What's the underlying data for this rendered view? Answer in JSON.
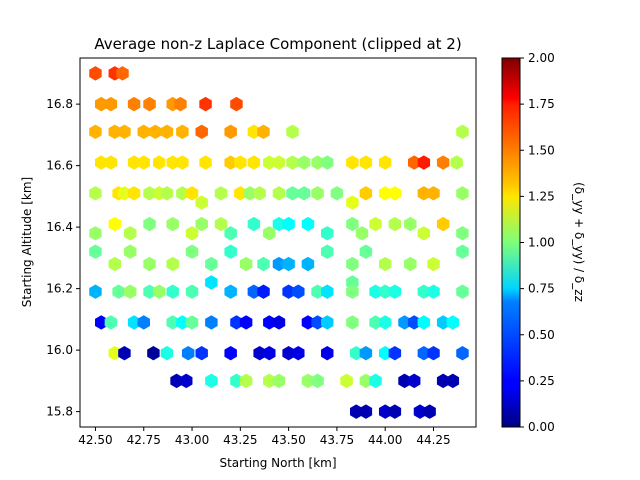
{
  "chart_data": {
    "type": "heatmap",
    "subtype": "hexbin",
    "title": "Average non-z Laplace Component (clipped at 2)",
    "xlabel": "Starting North [km]",
    "ylabel": "Starting Altitude [km]",
    "colorbar_label": "(δ_yy + δ_yy) / δ_zz",
    "colormap": "jet",
    "xlim": [
      42.42,
      44.47
    ],
    "ylim": [
      15.75,
      16.95
    ],
    "clim": [
      0,
      2
    ],
    "x_ticks": [
      {
        "value": 42.5,
        "label": "42.50"
      },
      {
        "value": 42.75,
        "label": "42.75"
      },
      {
        "value": 43.0,
        "label": "43.00"
      },
      {
        "value": 43.25,
        "label": "43.25"
      },
      {
        "value": 43.5,
        "label": "43.50"
      },
      {
        "value": 43.75,
        "label": "43.75"
      },
      {
        "value": 44.0,
        "label": "44.00"
      },
      {
        "value": 44.25,
        "label": "44.25"
      }
    ],
    "y_ticks": [
      {
        "value": 15.8,
        "label": "15.8"
      },
      {
        "value": 16.0,
        "label": "16.0"
      },
      {
        "value": 16.2,
        "label": "16.2"
      },
      {
        "value": 16.4,
        "label": "16.4"
      },
      {
        "value": 16.6,
        "label": "16.6"
      },
      {
        "value": 16.8,
        "label": "16.8"
      }
    ],
    "colorbar_ticks": [
      {
        "value": 0.0,
        "label": "0.00"
      },
      {
        "value": 0.25,
        "label": "0.25"
      },
      {
        "value": 0.5,
        "label": "0.50"
      },
      {
        "value": 0.75,
        "label": "0.75"
      },
      {
        "value": 1.0,
        "label": "1.00"
      },
      {
        "value": 1.25,
        "label": "1.25"
      },
      {
        "value": 1.5,
        "label": "1.50"
      },
      {
        "value": 1.75,
        "label": "1.75"
      },
      {
        "value": 2.0,
        "label": "2.00"
      }
    ],
    "points": [
      {
        "x": 42.5,
        "y": 16.9,
        "v": 1.6
      },
      {
        "x": 42.6,
        "y": 16.9,
        "v": 1.65
      },
      {
        "x": 42.64,
        "y": 16.9,
        "v": 1.55
      },
      {
        "x": 42.53,
        "y": 16.8,
        "v": 1.45
      },
      {
        "x": 42.58,
        "y": 16.8,
        "v": 1.45
      },
      {
        "x": 42.7,
        "y": 16.8,
        "v": 1.5
      },
      {
        "x": 42.78,
        "y": 16.8,
        "v": 1.5
      },
      {
        "x": 42.9,
        "y": 16.8,
        "v": 1.45
      },
      {
        "x": 42.94,
        "y": 16.8,
        "v": 1.5
      },
      {
        "x": 43.07,
        "y": 16.8,
        "v": 1.65
      },
      {
        "x": 43.23,
        "y": 16.8,
        "v": 1.6
      },
      {
        "x": 42.5,
        "y": 16.71,
        "v": 1.4
      },
      {
        "x": 42.6,
        "y": 16.71,
        "v": 1.4
      },
      {
        "x": 42.65,
        "y": 16.71,
        "v": 1.4
      },
      {
        "x": 42.75,
        "y": 16.71,
        "v": 1.4
      },
      {
        "x": 42.81,
        "y": 16.71,
        "v": 1.4
      },
      {
        "x": 42.87,
        "y": 16.71,
        "v": 1.4
      },
      {
        "x": 42.95,
        "y": 16.71,
        "v": 1.4
      },
      {
        "x": 43.05,
        "y": 16.71,
        "v": 1.55
      },
      {
        "x": 43.2,
        "y": 16.71,
        "v": 1.45
      },
      {
        "x": 43.32,
        "y": 16.71,
        "v": 1.3
      },
      {
        "x": 43.37,
        "y": 16.71,
        "v": 1.4
      },
      {
        "x": 43.52,
        "y": 16.71,
        "v": 1.1
      },
      {
        "x": 44.4,
        "y": 16.71,
        "v": 1.1
      },
      {
        "x": 42.53,
        "y": 16.61,
        "v": 1.3
      },
      {
        "x": 42.58,
        "y": 16.61,
        "v": 1.3
      },
      {
        "x": 42.7,
        "y": 16.61,
        "v": 1.3
      },
      {
        "x": 42.75,
        "y": 16.61,
        "v": 1.3
      },
      {
        "x": 42.83,
        "y": 16.61,
        "v": 1.3
      },
      {
        "x": 42.9,
        "y": 16.61,
        "v": 1.3
      },
      {
        "x": 42.95,
        "y": 16.61,
        "v": 1.3
      },
      {
        "x": 43.07,
        "y": 16.61,
        "v": 1.3
      },
      {
        "x": 43.2,
        "y": 16.61,
        "v": 1.35
      },
      {
        "x": 43.25,
        "y": 16.61,
        "v": 1.3
      },
      {
        "x": 43.32,
        "y": 16.61,
        "v": 1.3
      },
      {
        "x": 43.4,
        "y": 16.61,
        "v": 1.15
      },
      {
        "x": 43.45,
        "y": 16.61,
        "v": 1.15
      },
      {
        "x": 43.52,
        "y": 16.61,
        "v": 1.1
      },
      {
        "x": 43.58,
        "y": 16.61,
        "v": 1.05
      },
      {
        "x": 43.65,
        "y": 16.61,
        "v": 1.05
      },
      {
        "x": 43.7,
        "y": 16.61,
        "v": 1.0
      },
      {
        "x": 43.83,
        "y": 16.61,
        "v": 1.3
      },
      {
        "x": 43.9,
        "y": 16.61,
        "v": 1.3
      },
      {
        "x": 44.0,
        "y": 16.61,
        "v": 1.3
      },
      {
        "x": 44.15,
        "y": 16.61,
        "v": 1.55
      },
      {
        "x": 44.2,
        "y": 16.61,
        "v": 1.7
      },
      {
        "x": 44.3,
        "y": 16.61,
        "v": 1.5
      },
      {
        "x": 44.37,
        "y": 16.61,
        "v": 1.1
      },
      {
        "x": 42.5,
        "y": 16.51,
        "v": 1.1
      },
      {
        "x": 42.62,
        "y": 16.51,
        "v": 1.3
      },
      {
        "x": 42.65,
        "y": 16.51,
        "v": 1.2
      },
      {
        "x": 42.7,
        "y": 16.51,
        "v": 1.3
      },
      {
        "x": 42.78,
        "y": 16.51,
        "v": 1.1
      },
      {
        "x": 42.83,
        "y": 16.51,
        "v": 1.15
      },
      {
        "x": 42.87,
        "y": 16.51,
        "v": 1.1
      },
      {
        "x": 42.95,
        "y": 16.51,
        "v": 1.1
      },
      {
        "x": 43.0,
        "y": 16.51,
        "v": 1.3
      },
      {
        "x": 43.15,
        "y": 16.51,
        "v": 1.1
      },
      {
        "x": 43.25,
        "y": 16.51,
        "v": 1.3
      },
      {
        "x": 43.3,
        "y": 16.51,
        "v": 1.05
      },
      {
        "x": 43.35,
        "y": 16.51,
        "v": 1.1
      },
      {
        "x": 43.45,
        "y": 16.51,
        "v": 1.1
      },
      {
        "x": 43.52,
        "y": 16.51,
        "v": 0.95
      },
      {
        "x": 43.58,
        "y": 16.51,
        "v": 0.95
      },
      {
        "x": 43.65,
        "y": 16.51,
        "v": 1.05
      },
      {
        "x": 43.75,
        "y": 16.51,
        "v": 1.0
      },
      {
        "x": 43.9,
        "y": 16.51,
        "v": 1.35
      },
      {
        "x": 44.0,
        "y": 16.51,
        "v": 1.25
      },
      {
        "x": 44.05,
        "y": 16.51,
        "v": 1.25
      },
      {
        "x": 44.2,
        "y": 16.51,
        "v": 1.4
      },
      {
        "x": 44.25,
        "y": 16.51,
        "v": 1.4
      },
      {
        "x": 44.4,
        "y": 16.51,
        "v": 1.05
      },
      {
        "x": 43.83,
        "y": 16.48,
        "v": 1.2
      },
      {
        "x": 43.05,
        "y": 16.48,
        "v": 1.15
      },
      {
        "x": 42.5,
        "y": 16.38,
        "v": 1.05
      },
      {
        "x": 42.6,
        "y": 16.41,
        "v": 1.25
      },
      {
        "x": 42.68,
        "y": 16.38,
        "v": 1.1
      },
      {
        "x": 42.78,
        "y": 16.41,
        "v": 1.0
      },
      {
        "x": 42.9,
        "y": 16.41,
        "v": 1.05
      },
      {
        "x": 43.0,
        "y": 16.38,
        "v": 1.15
      },
      {
        "x": 43.05,
        "y": 16.41,
        "v": 1.05
      },
      {
        "x": 43.15,
        "y": 16.41,
        "v": 1.1
      },
      {
        "x": 43.2,
        "y": 16.38,
        "v": 0.9
      },
      {
        "x": 43.32,
        "y": 16.41,
        "v": 0.85
      },
      {
        "x": 43.4,
        "y": 16.38,
        "v": 1.05
      },
      {
        "x": 43.45,
        "y": 16.41,
        "v": 0.8
      },
      {
        "x": 43.5,
        "y": 16.41,
        "v": 0.75
      },
      {
        "x": 43.6,
        "y": 16.41,
        "v": 0.75
      },
      {
        "x": 43.7,
        "y": 16.38,
        "v": 0.85
      },
      {
        "x": 43.83,
        "y": 16.41,
        "v": 1.0
      },
      {
        "x": 43.88,
        "y": 16.38,
        "v": 1.05
      },
      {
        "x": 43.95,
        "y": 16.41,
        "v": 1.15
      },
      {
        "x": 44.05,
        "y": 16.41,
        "v": 1.1
      },
      {
        "x": 44.13,
        "y": 16.41,
        "v": 1.05
      },
      {
        "x": 44.2,
        "y": 16.38,
        "v": 1.15
      },
      {
        "x": 44.3,
        "y": 16.41,
        "v": 1.35
      },
      {
        "x": 44.4,
        "y": 16.38,
        "v": 1.0
      },
      {
        "x": 42.5,
        "y": 16.32,
        "v": 0.95
      },
      {
        "x": 42.6,
        "y": 16.28,
        "v": 1.1
      },
      {
        "x": 42.68,
        "y": 16.32,
        "v": 1.05
      },
      {
        "x": 42.78,
        "y": 16.28,
        "v": 1.05
      },
      {
        "x": 42.9,
        "y": 16.28,
        "v": 1.1
      },
      {
        "x": 43.0,
        "y": 16.32,
        "v": 1.0
      },
      {
        "x": 43.1,
        "y": 16.28,
        "v": 0.95
      },
      {
        "x": 43.2,
        "y": 16.32,
        "v": 0.85
      },
      {
        "x": 43.28,
        "y": 16.28,
        "v": 1.05
      },
      {
        "x": 43.37,
        "y": 16.28,
        "v": 0.9
      },
      {
        "x": 43.45,
        "y": 16.28,
        "v": 0.55
      },
      {
        "x": 43.5,
        "y": 16.28,
        "v": 0.6
      },
      {
        "x": 43.6,
        "y": 16.28,
        "v": 0.6
      },
      {
        "x": 43.7,
        "y": 16.32,
        "v": 0.9
      },
      {
        "x": 43.83,
        "y": 16.28,
        "v": 1.0
      },
      {
        "x": 43.9,
        "y": 16.32,
        "v": 0.95
      },
      {
        "x": 44.0,
        "y": 16.28,
        "v": 1.1
      },
      {
        "x": 44.13,
        "y": 16.28,
        "v": 1.05
      },
      {
        "x": 44.25,
        "y": 16.28,
        "v": 1.15
      },
      {
        "x": 44.4,
        "y": 16.32,
        "v": 0.95
      },
      {
        "x": 43.1,
        "y": 16.22,
        "v": 0.7
      },
      {
        "x": 43.83,
        "y": 16.22,
        "v": 0.95
      },
      {
        "x": 42.5,
        "y": 16.19,
        "v": 0.6
      },
      {
        "x": 42.62,
        "y": 16.19,
        "v": 0.95
      },
      {
        "x": 42.68,
        "y": 16.19,
        "v": 1.05
      },
      {
        "x": 42.78,
        "y": 16.19,
        "v": 0.9
      },
      {
        "x": 42.83,
        "y": 16.19,
        "v": 1.05
      },
      {
        "x": 42.9,
        "y": 16.19,
        "v": 0.85
      },
      {
        "x": 43.0,
        "y": 16.19,
        "v": 0.9
      },
      {
        "x": 43.2,
        "y": 16.19,
        "v": 0.6
      },
      {
        "x": 43.32,
        "y": 16.19,
        "v": 0.45
      },
      {
        "x": 43.37,
        "y": 16.19,
        "v": 0.3
      },
      {
        "x": 43.5,
        "y": 16.19,
        "v": 0.35
      },
      {
        "x": 43.55,
        "y": 16.19,
        "v": 0.4
      },
      {
        "x": 43.65,
        "y": 16.19,
        "v": 0.9
      },
      {
        "x": 43.7,
        "y": 16.19,
        "v": 0.7
      },
      {
        "x": 43.83,
        "y": 16.19,
        "v": 1.0
      },
      {
        "x": 43.95,
        "y": 16.19,
        "v": 0.8
      },
      {
        "x": 44.0,
        "y": 16.19,
        "v": 0.85
      },
      {
        "x": 44.05,
        "y": 16.19,
        "v": 0.8
      },
      {
        "x": 44.2,
        "y": 16.19,
        "v": 0.85
      },
      {
        "x": 44.25,
        "y": 16.19,
        "v": 0.8
      },
      {
        "x": 44.4,
        "y": 16.19,
        "v": 0.95
      },
      {
        "x": 42.53,
        "y": 16.09,
        "v": 0.25
      },
      {
        "x": 42.58,
        "y": 16.09,
        "v": 0.9
      },
      {
        "x": 42.7,
        "y": 16.09,
        "v": 0.7
      },
      {
        "x": 42.75,
        "y": 16.09,
        "v": 0.5
      },
      {
        "x": 42.9,
        "y": 16.09,
        "v": 0.9
      },
      {
        "x": 42.95,
        "y": 16.09,
        "v": 0.75
      },
      {
        "x": 43.0,
        "y": 16.09,
        "v": 0.95
      },
      {
        "x": 43.1,
        "y": 16.09,
        "v": 0.5
      },
      {
        "x": 43.23,
        "y": 16.09,
        "v": 0.35
      },
      {
        "x": 43.28,
        "y": 16.09,
        "v": 0.25
      },
      {
        "x": 43.4,
        "y": 16.09,
        "v": 0.25
      },
      {
        "x": 43.45,
        "y": 16.09,
        "v": 0.2
      },
      {
        "x": 43.6,
        "y": 16.09,
        "v": 0.25
      },
      {
        "x": 43.65,
        "y": 16.09,
        "v": 0.4
      },
      {
        "x": 43.7,
        "y": 16.09,
        "v": 0.65
      },
      {
        "x": 43.83,
        "y": 16.09,
        "v": 1.0
      },
      {
        "x": 43.95,
        "y": 16.09,
        "v": 0.9
      },
      {
        "x": 44.0,
        "y": 16.09,
        "v": 0.8
      },
      {
        "x": 44.1,
        "y": 16.09,
        "v": 0.55
      },
      {
        "x": 44.15,
        "y": 16.09,
        "v": 0.4
      },
      {
        "x": 44.2,
        "y": 16.09,
        "v": 0.75
      },
      {
        "x": 44.3,
        "y": 16.09,
        "v": 0.65
      },
      {
        "x": 44.35,
        "y": 16.09,
        "v": 0.75
      },
      {
        "x": 42.6,
        "y": 15.99,
        "v": 1.2
      },
      {
        "x": 42.65,
        "y": 15.99,
        "v": 0.1
      },
      {
        "x": 42.8,
        "y": 15.99,
        "v": 0.05
      },
      {
        "x": 42.87,
        "y": 15.99,
        "v": 0.8
      },
      {
        "x": 42.98,
        "y": 15.99,
        "v": 0.5
      },
      {
        "x": 43.05,
        "y": 15.99,
        "v": 0.35
      },
      {
        "x": 43.2,
        "y": 15.99,
        "v": 0.25
      },
      {
        "x": 43.35,
        "y": 15.99,
        "v": 0.15
      },
      {
        "x": 43.4,
        "y": 15.99,
        "v": 0.2
      },
      {
        "x": 43.5,
        "y": 15.99,
        "v": 0.15
      },
      {
        "x": 43.55,
        "y": 15.99,
        "v": 0.2
      },
      {
        "x": 43.7,
        "y": 15.99,
        "v": 0.2
      },
      {
        "x": 43.85,
        "y": 15.99,
        "v": 0.85
      },
      {
        "x": 43.9,
        "y": 15.99,
        "v": 0.55
      },
      {
        "x": 44.0,
        "y": 15.99,
        "v": 0.75
      },
      {
        "x": 44.05,
        "y": 15.99,
        "v": 0.35
      },
      {
        "x": 44.2,
        "y": 15.99,
        "v": 0.45
      },
      {
        "x": 44.25,
        "y": 15.99,
        "v": 0.35
      },
      {
        "x": 44.4,
        "y": 15.99,
        "v": 0.45
      },
      {
        "x": 42.92,
        "y": 15.9,
        "v": 0.1
      },
      {
        "x": 42.97,
        "y": 15.9,
        "v": 0.15
      },
      {
        "x": 43.1,
        "y": 15.9,
        "v": 0.8
      },
      {
        "x": 43.23,
        "y": 15.9,
        "v": 0.85
      },
      {
        "x": 43.28,
        "y": 15.9,
        "v": 1.1
      },
      {
        "x": 43.4,
        "y": 15.9,
        "v": 1.1
      },
      {
        "x": 43.45,
        "y": 15.9,
        "v": 1.05
      },
      {
        "x": 43.6,
        "y": 15.9,
        "v": 1.05
      },
      {
        "x": 43.65,
        "y": 15.9,
        "v": 1.0
      },
      {
        "x": 43.8,
        "y": 15.9,
        "v": 1.15
      },
      {
        "x": 43.9,
        "y": 15.9,
        "v": 1.05
      },
      {
        "x": 43.95,
        "y": 15.9,
        "v": 0.8
      },
      {
        "x": 44.1,
        "y": 15.9,
        "v": 0.1
      },
      {
        "x": 44.15,
        "y": 15.9,
        "v": 0.15
      },
      {
        "x": 44.3,
        "y": 15.9,
        "v": 0.1
      },
      {
        "x": 44.35,
        "y": 15.9,
        "v": 0.1
      },
      {
        "x": 43.85,
        "y": 15.8,
        "v": 0.1
      },
      {
        "x": 43.9,
        "y": 15.8,
        "v": 0.1
      },
      {
        "x": 44.0,
        "y": 15.8,
        "v": 0.15
      },
      {
        "x": 44.05,
        "y": 15.8,
        "v": 0.1
      },
      {
        "x": 44.18,
        "y": 15.8,
        "v": 0.15
      },
      {
        "x": 44.23,
        "y": 15.8,
        "v": 0.1
      }
    ]
  }
}
